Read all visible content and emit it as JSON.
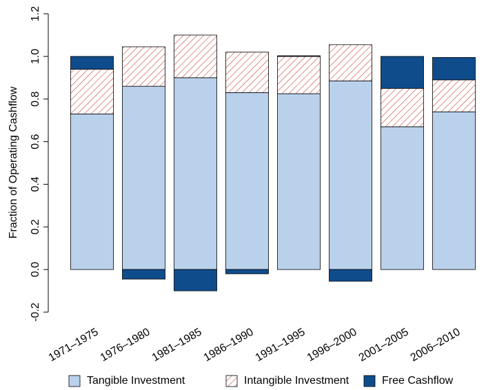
{
  "chart_data": {
    "type": "bar",
    "stacked": true,
    "y_label": "Fraction of Operating Cashflow",
    "categories": [
      "1971–1975",
      "1976–1980",
      "1981–1985",
      "1986–1990",
      "1991–1995",
      "1996–2000",
      "2001–2005",
      "2006–2010"
    ],
    "series": [
      {
        "name": "Tangible Investment",
        "color": "#bad1ec",
        "values": [
          0.73,
          0.86,
          0.9,
          0.83,
          0.825,
          0.885,
          0.67,
          0.74
        ]
      },
      {
        "name": "Intangible Investment",
        "color": "#c8423c",
        "hatch": true,
        "values": [
          0.21,
          0.185,
          0.2,
          0.19,
          0.175,
          0.17,
          0.18,
          0.15
        ]
      },
      {
        "name": "Free Cashflow",
        "color": "#0f4c8c",
        "values": [
          0.06,
          -0.045,
          -0.1,
          -0.02,
          0.003,
          -0.055,
          0.15,
          0.105
        ]
      }
    ],
    "ylim": [
      -0.2,
      1.2
    ],
    "yticks": [
      -0.2,
      {
        "value": 0,
        "label": "0.0"
      },
      0.2,
      0.4,
      0.6,
      0.8,
      {
        "value": 1,
        "label": "1.0"
      },
      1.2
    ],
    "legend": "bottom"
  }
}
